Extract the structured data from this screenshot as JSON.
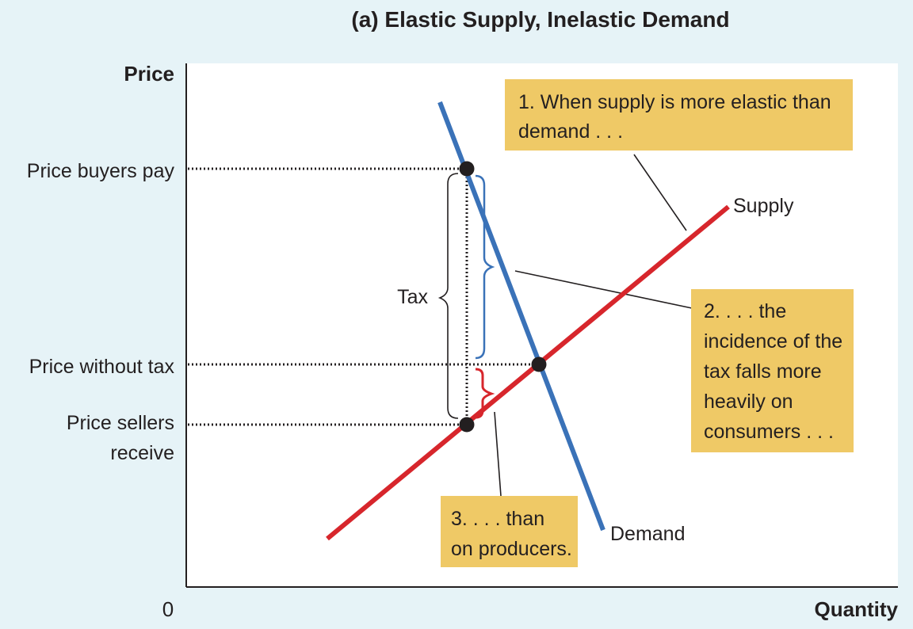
{
  "title": "(a) Elastic Supply, Inelastic Demand",
  "axes": {
    "y_label": "Price",
    "x_label": "Quantity",
    "origin": "0"
  },
  "price_levels": {
    "buyers_pay": "Price buyers pay",
    "without_tax": "Price without tax",
    "sellers_receive_line1": "Price sellers",
    "sellers_receive_line2": "receive"
  },
  "curves": {
    "supply": "Supply",
    "demand": "Demand"
  },
  "tax_label": "Tax",
  "callouts": {
    "one": [
      "1. When supply is more elastic than",
      "demand . . ."
    ],
    "two": [
      "2. . . . the",
      "incidence of the",
      "tax falls more",
      "heavily on",
      "consumers . . ."
    ],
    "three": [
      "3. . . . than",
      "on producers."
    ]
  },
  "colors": {
    "background": "#e6f3f7",
    "plot_area": "#ffffff",
    "supply": "#d7262c",
    "demand": "#3a72b8",
    "callout_fill": "#efc966",
    "brace_consumer": "#3a72b8",
    "brace_producer": "#d7262c"
  }
}
